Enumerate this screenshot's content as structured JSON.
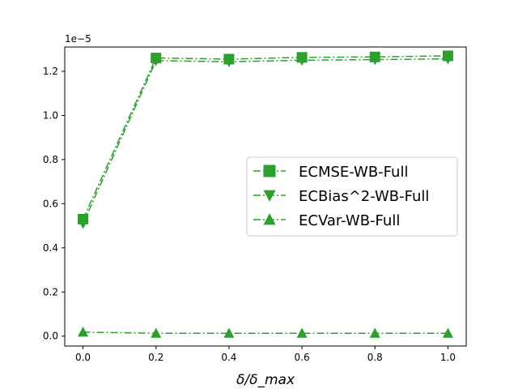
{
  "chart_data": {
    "type": "line",
    "title": "",
    "xlabel": "δ/δ_max",
    "ylabel": "",
    "y_scale_label": "1e−5",
    "xlim": [
      -0.05,
      1.05
    ],
    "ylim": [
      -0.045,
      1.31
    ],
    "x_ticks": [
      0.0,
      0.2,
      0.4,
      0.6,
      0.8,
      1.0
    ],
    "y_ticks": [
      0.0,
      0.2,
      0.4,
      0.6,
      0.8,
      1.0,
      1.2
    ],
    "x_tick_labels": [
      "0.0",
      "0.2",
      "0.4",
      "0.6",
      "0.8",
      "1.0"
    ],
    "y_tick_labels": [
      "0.0",
      "0.2",
      "0.4",
      "0.6",
      "0.8",
      "1.0",
      "1.2"
    ],
    "x": [
      0.0,
      0.2,
      0.4,
      0.6,
      0.8,
      1.0
    ],
    "series": [
      {
        "name": "ECMSE-WB-Full",
        "marker": "square",
        "color": "#2ca02c",
        "values": [
          0.53,
          1.26,
          1.255,
          1.263,
          1.265,
          1.27
        ]
      },
      {
        "name": "ECBias^2-WB-Full",
        "marker": "triangle-down",
        "color": "#2ca02c",
        "values": [
          0.51,
          1.248,
          1.243,
          1.25,
          1.253,
          1.256
        ]
      },
      {
        "name": "ECVar-WB-Full",
        "marker": "triangle-up",
        "color": "#2ca02c",
        "values": [
          0.018,
          0.013,
          0.013,
          0.013,
          0.013,
          0.013
        ]
      }
    ],
    "legend_placement": "center-right",
    "grid": false,
    "line_style": "dash-dot"
  }
}
